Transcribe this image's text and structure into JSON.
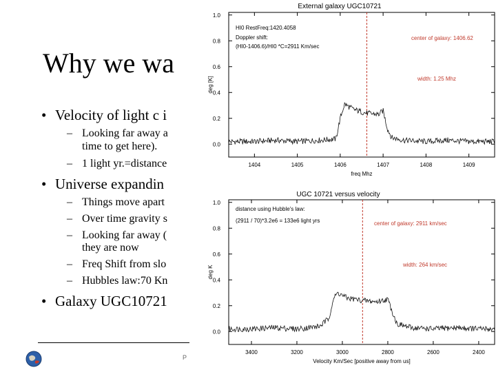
{
  "slide": {
    "title": "Why we wa",
    "bullets": [
      {
        "text": "Velocity of light c i"
      },
      {
        "text": "Universe expandin"
      },
      {
        "text": "Galaxy UGC10721"
      }
    ],
    "subbullets": [
      {
        "text": "Looking far away a"
      },
      {
        "text": "time to get here)."
      },
      {
        "text": "1 light yr.=distance"
      },
      {
        "text": "Things move apart"
      },
      {
        "text": "Over time gravity s"
      },
      {
        "text": "Looking far away ("
      },
      {
        "text": "they are now"
      },
      {
        "text": "Freq Shift from slo"
      },
      {
        "text": "Hubbles law:70 Kn"
      }
    ],
    "footer_text": "P"
  },
  "chart_data": [
    {
      "type": "line",
      "title": "External galaxy UGC10721",
      "xlabel": "freq Mhz",
      "ylabel": "deg [K]",
      "xlim": [
        1403.4,
        1409.6
      ],
      "ylim": [
        -0.1,
        1.02
      ],
      "x_ticks": [
        1404,
        1405,
        1406,
        1407,
        1408,
        1409
      ],
      "y_ticks": [
        0.0,
        0.2,
        0.4,
        0.6,
        0.8,
        1.0
      ],
      "annotations": [
        "HI0 RestFreq:1420.4058",
        "Doppler shift:",
        "(HI0-1406.6)/HI0 *C=2911 Km/sec",
        "center of galaxy: 1406.62",
        "width: 1.25 Mhz"
      ],
      "center_line_x": 1406.62,
      "series": [
        {
          "x": [
            1403.4,
            1404.0,
            1404.5,
            1405.0,
            1405.5,
            1405.9,
            1406.0,
            1406.1,
            1406.3,
            1406.6,
            1406.9,
            1407.0,
            1407.1,
            1407.2,
            1407.5,
            1408.0,
            1408.5,
            1409.0,
            1409.6
          ],
          "values": [
            0.02,
            0.02,
            0.03,
            0.02,
            0.03,
            0.04,
            0.2,
            0.31,
            0.27,
            0.24,
            0.23,
            0.26,
            0.12,
            0.05,
            0.03,
            0.02,
            0.03,
            0.02,
            0.02
          ]
        }
      ]
    },
    {
      "type": "line",
      "title": "UGC 10721 versus velocity",
      "xlabel": "Velocity Km/Sec [positive away from us]",
      "ylabel": "deg K",
      "xlim": [
        3500,
        2330
      ],
      "ylim": [
        -0.1,
        1.02
      ],
      "x_ticks": [
        3400,
        3200,
        3000,
        2800,
        2600,
        2400
      ],
      "y_ticks": [
        0.0,
        0.2,
        0.4,
        0.6,
        0.8,
        1.0
      ],
      "annotations": [
        "distance using Hubble's law:",
        "(2911 / 70)*3.2e6 = 133e6 light yrs",
        "center of galaxy: 2911 km/sec",
        "width: 264 km/sec"
      ],
      "center_line_x": 2911,
      "series": [
        {
          "x": [
            3500,
            3400,
            3300,
            3200,
            3100,
            3060,
            3040,
            3020,
            2980,
            2911,
            2850,
            2800,
            2790,
            2760,
            2700,
            2600,
            2500,
            2400,
            2330
          ],
          "values": [
            0.02,
            0.02,
            0.03,
            0.02,
            0.04,
            0.1,
            0.25,
            0.3,
            0.26,
            0.24,
            0.23,
            0.25,
            0.2,
            0.06,
            0.03,
            0.02,
            0.03,
            0.02,
            0.02
          ]
        }
      ]
    }
  ]
}
